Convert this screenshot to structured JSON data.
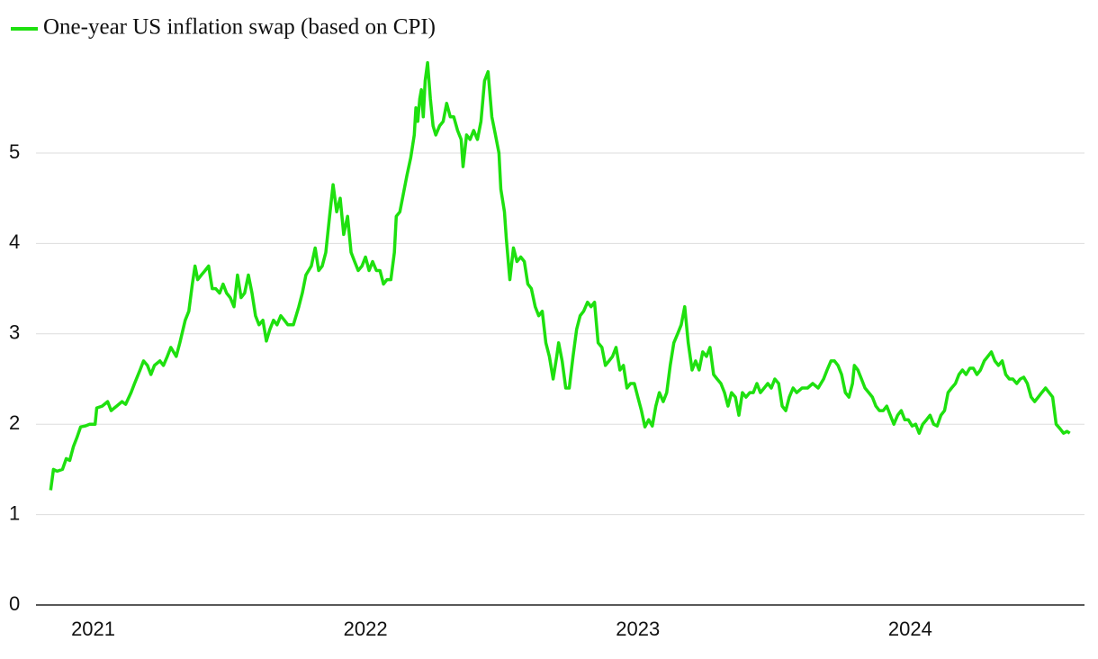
{
  "chart_data": {
    "type": "line",
    "x": [
      2020.844,
      2020.854,
      2020.868,
      2020.887,
      2020.901,
      2020.914,
      2020.927,
      2020.94,
      2020.954,
      2020.97,
      2020.987,
      2021.007,
      2021.013,
      2021.033,
      2021.053,
      2021.066,
      2021.086,
      2021.106,
      2021.119,
      2021.139,
      2021.152,
      2021.172,
      2021.185,
      2021.199,
      2021.212,
      2021.225,
      2021.245,
      2021.258,
      2021.272,
      2021.285,
      2021.305,
      2021.318,
      2021.338,
      2021.351,
      2021.364,
      2021.374,
      2021.384,
      2021.397,
      2021.411,
      2021.424,
      2021.437,
      2021.45,
      2021.464,
      2021.477,
      2021.49,
      2021.503,
      2021.517,
      2021.53,
      2021.543,
      2021.556,
      2021.57,
      2021.583,
      2021.596,
      2021.609,
      2021.623,
      2021.636,
      2021.649,
      2021.662,
      2021.675,
      2021.689,
      2021.702,
      2021.715,
      2021.735,
      2021.755,
      2021.768,
      2021.781,
      2021.801,
      2021.815,
      2021.828,
      2021.841,
      2021.854,
      2021.868,
      2021.881,
      2021.894,
      2021.907,
      2021.92,
      2021.934,
      2021.947,
      2021.96,
      2021.973,
      2021.987,
      2022.0,
      2022.013,
      2022.026,
      2022.04,
      2022.053,
      2022.066,
      2022.079,
      2022.093,
      2022.106,
      2022.113,
      2022.126,
      2022.139,
      2022.152,
      2022.166,
      2022.179,
      2022.185,
      2022.192,
      2022.199,
      2022.205,
      2022.212,
      2022.219,
      2022.228,
      2022.238,
      2022.248,
      2022.258,
      2022.272,
      2022.285,
      2022.298,
      2022.311,
      2022.324,
      2022.338,
      2022.351,
      2022.358,
      2022.371,
      2022.384,
      2022.397,
      2022.411,
      2022.424,
      2022.437,
      2022.45,
      2022.464,
      2022.477,
      2022.49,
      2022.497,
      2022.51,
      2022.517,
      2022.53,
      2022.543,
      2022.556,
      2022.57,
      2022.583,
      2022.596,
      2022.609,
      2022.623,
      2022.636,
      2022.649,
      2022.662,
      2022.675,
      2022.689,
      2022.702,
      2022.709,
      2022.722,
      2022.735,
      2022.748,
      2022.762,
      2022.775,
      2022.788,
      2022.801,
      2022.815,
      2022.828,
      2022.841,
      2022.854,
      2022.868,
      2022.881,
      2022.894,
      2022.907,
      2022.92,
      2022.934,
      2022.947,
      2022.96,
      2022.973,
      2022.987,
      2023.0,
      2023.013,
      2023.026,
      2023.04,
      2023.053,
      2023.066,
      2023.079,
      2023.093,
      2023.106,
      2023.119,
      2023.132,
      2023.146,
      2023.159,
      2023.172,
      2023.185,
      2023.199,
      2023.212,
      2023.225,
      2023.238,
      2023.252,
      2023.265,
      2023.278,
      2023.291,
      2023.305,
      2023.318,
      2023.331,
      2023.344,
      2023.358,
      2023.371,
      2023.384,
      2023.397,
      2023.411,
      2023.424,
      2023.437,
      2023.45,
      2023.464,
      2023.477,
      2023.49,
      2023.503,
      2023.517,
      2023.53,
      2023.543,
      2023.556,
      2023.57,
      2023.583,
      2023.603,
      2023.623,
      2023.642,
      2023.662,
      2023.682,
      2023.695,
      2023.709,
      2023.722,
      2023.735,
      2023.748,
      2023.762,
      2023.775,
      2023.788,
      2023.795,
      2023.808,
      2023.821,
      2023.834,
      2023.848,
      2023.861,
      2023.874,
      2023.887,
      2023.901,
      2023.914,
      2023.927,
      2023.94,
      2023.954,
      2023.967,
      2023.98,
      2023.993,
      2024.007,
      2024.02,
      2024.033,
      2024.046,
      2024.06,
      2024.073,
      2024.086,
      2024.099,
      2024.113,
      2024.126,
      2024.139,
      2024.152,
      2024.166,
      2024.179,
      2024.192,
      2024.205,
      2024.219,
      2024.232,
      2024.245,
      2024.258,
      2024.272,
      2024.285,
      2024.298,
      2024.311,
      2024.324,
      2024.338,
      2024.351,
      2024.364,
      2024.377,
      2024.391,
      2024.404,
      2024.417,
      2024.43,
      2024.444,
      2024.457,
      2024.47,
      2024.483,
      2024.497,
      2024.51,
      2024.523,
      2024.536,
      2024.55,
      2024.563,
      2024.576,
      2024.586
    ],
    "series": [
      {
        "name": "One-year US inflation swap (based on CPI)",
        "color": "#1ee00f",
        "values": [
          1.27,
          1.5,
          1.48,
          1.5,
          1.62,
          1.6,
          1.75,
          1.85,
          1.97,
          1.98,
          2.0,
          2.0,
          2.18,
          2.2,
          2.25,
          2.15,
          2.2,
          2.25,
          2.22,
          2.35,
          2.45,
          2.6,
          2.7,
          2.65,
          2.55,
          2.65,
          2.7,
          2.65,
          2.75,
          2.85,
          2.75,
          2.9,
          3.15,
          3.25,
          3.55,
          3.75,
          3.6,
          3.65,
          3.7,
          3.75,
          3.5,
          3.5,
          3.45,
          3.55,
          3.45,
          3.4,
          3.3,
          3.65,
          3.4,
          3.45,
          3.65,
          3.45,
          3.2,
          3.1,
          3.15,
          2.92,
          3.05,
          3.15,
          3.1,
          3.2,
          3.15,
          3.1,
          3.1,
          3.3,
          3.45,
          3.65,
          3.75,
          3.95,
          3.7,
          3.75,
          3.9,
          4.3,
          4.65,
          4.35,
          4.5,
          4.1,
          4.3,
          3.9,
          3.8,
          3.7,
          3.75,
          3.85,
          3.7,
          3.8,
          3.7,
          3.7,
          3.55,
          3.6,
          3.6,
          3.9,
          4.3,
          4.35,
          4.55,
          4.75,
          4.95,
          5.2,
          5.5,
          5.35,
          5.6,
          5.7,
          5.4,
          5.8,
          6.0,
          5.6,
          5.3,
          5.2,
          5.3,
          5.35,
          5.55,
          5.4,
          5.4,
          5.25,
          5.15,
          4.85,
          5.2,
          5.15,
          5.25,
          5.15,
          5.35,
          5.8,
          5.9,
          5.4,
          5.2,
          5.0,
          4.6,
          4.35,
          4.05,
          3.6,
          3.95,
          3.8,
          3.85,
          3.8,
          3.55,
          3.5,
          3.3,
          3.2,
          3.25,
          2.9,
          2.75,
          2.5,
          2.75,
          2.9,
          2.7,
          2.4,
          2.4,
          2.75,
          3.05,
          3.2,
          3.25,
          3.35,
          3.3,
          3.35,
          2.9,
          2.85,
          2.65,
          2.7,
          2.75,
          2.85,
          2.6,
          2.65,
          2.4,
          2.45,
          2.45,
          2.3,
          2.15,
          1.97,
          2.05,
          1.98,
          2.2,
          2.35,
          2.25,
          2.35,
          2.65,
          2.9,
          3.0,
          3.1,
          3.3,
          2.9,
          2.6,
          2.7,
          2.6,
          2.8,
          2.75,
          2.85,
          2.55,
          2.5,
          2.45,
          2.35,
          2.2,
          2.35,
          2.3,
          2.1,
          2.35,
          2.3,
          2.35,
          2.35,
          2.45,
          2.35,
          2.4,
          2.45,
          2.4,
          2.5,
          2.45,
          2.2,
          2.15,
          2.3,
          2.4,
          2.35,
          2.4,
          2.4,
          2.45,
          2.4,
          2.5,
          2.6,
          2.7,
          2.7,
          2.65,
          2.55,
          2.35,
          2.3,
          2.45,
          2.65,
          2.6,
          2.5,
          2.4,
          2.35,
          2.3,
          2.2,
          2.15,
          2.15,
          2.2,
          2.1,
          2.0,
          2.1,
          2.15,
          2.05,
          2.05,
          1.98,
          2.0,
          1.9,
          2.0,
          2.05,
          2.1,
          2.0,
          1.98,
          2.1,
          2.15,
          2.35,
          2.4,
          2.45,
          2.55,
          2.6,
          2.55,
          2.62,
          2.62,
          2.55,
          2.6,
          2.7,
          2.75,
          2.8,
          2.7,
          2.65,
          2.7,
          2.55,
          2.5,
          2.5,
          2.45,
          2.5,
          2.52,
          2.45,
          2.3,
          2.25,
          2.3,
          2.35,
          2.4,
          2.35,
          2.3,
          2.0,
          1.95,
          1.9,
          1.92,
          1.9
        ]
      }
    ],
    "xlim": [
      2020.79,
      2024.64
    ],
    "xticks": [
      2021,
      2022,
      2023,
      2024
    ],
    "ylim": [
      0,
      6
    ],
    "yticks": [
      0,
      1,
      2,
      3,
      4,
      5
    ],
    "grid": true,
    "legend": "top-left"
  }
}
